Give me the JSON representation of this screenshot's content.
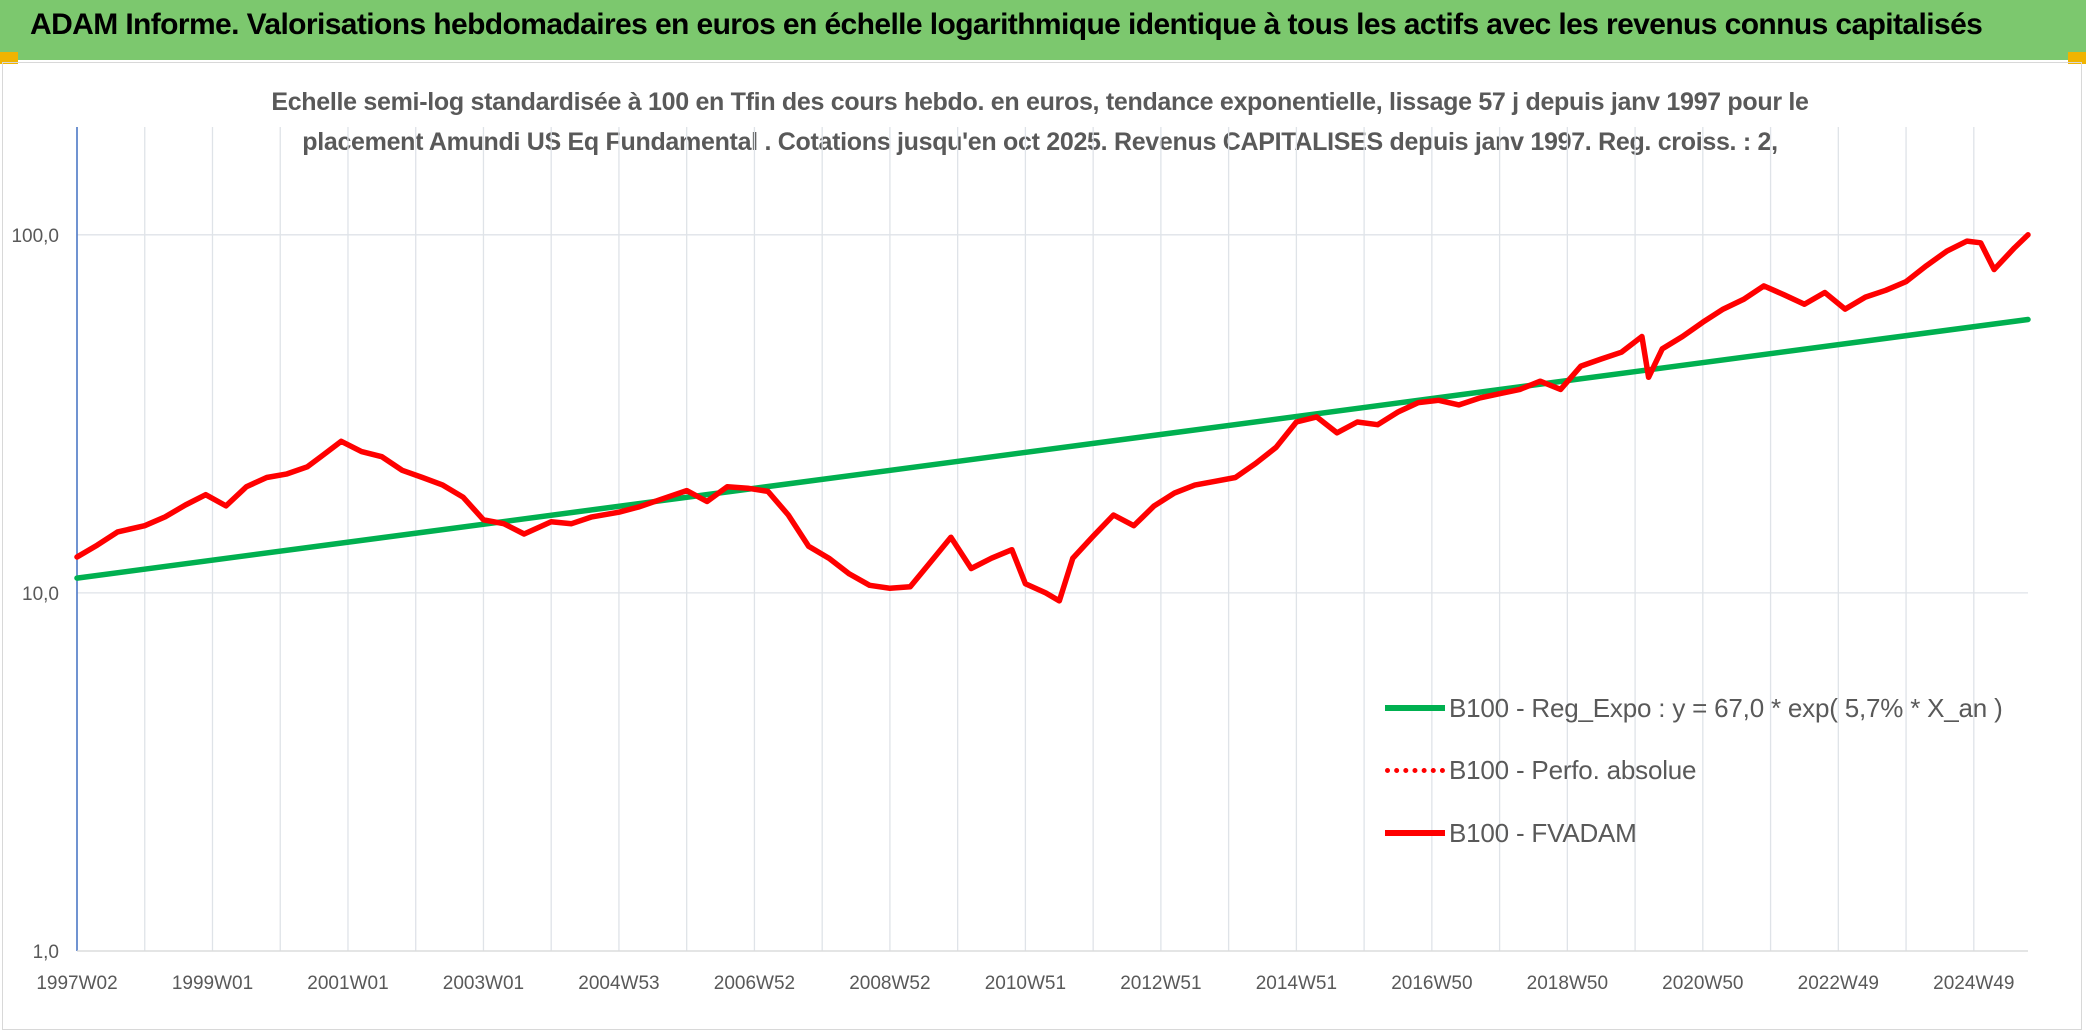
{
  "header": {
    "title": "ADAM Informe. Valorisations hebdomadaires en euros en échelle logarithmique identique à tous les actifs avec les revenus connus capitalisés"
  },
  "chart_data": {
    "type": "line",
    "title_line1": "Echelle semi-log standardisée à 100 en Tfin des cours hebdo. en euros, tendance exponentielle, lissage 57 j depuis janv 1997 pour le",
    "title_line2": "placement Amundi US Eq Fundamental . Cotations jusqu'en oct 2025. Revenus CAPITALISES depuis janv 1997. Reg. croiss. : 2,",
    "y_scale": "log",
    "ylim": [
      1,
      200
    ],
    "y_ticks": [
      {
        "value": 1,
        "label": "1,0"
      },
      {
        "value": 10,
        "label": "10,0"
      },
      {
        "value": 100,
        "label": "100,0"
      }
    ],
    "xlim": [
      1997.0,
      2025.8
    ],
    "x_ticks": [
      {
        "x": 1997.0,
        "label": "1997W02"
      },
      {
        "x": 1999.0,
        "label": "1999W01"
      },
      {
        "x": 2001.0,
        "label": "2001W01"
      },
      {
        "x": 2003.0,
        "label": "2003W01"
      },
      {
        "x": 2005.0,
        "label": "2004W53"
      },
      {
        "x": 2007.0,
        "label": "2006W52"
      },
      {
        "x": 2009.0,
        "label": "2008W52"
      },
      {
        "x": 2011.0,
        "label": "2010W51"
      },
      {
        "x": 2013.0,
        "label": "2012W51"
      },
      {
        "x": 2015.0,
        "label": "2014W51"
      },
      {
        "x": 2017.0,
        "label": "2016W50"
      },
      {
        "x": 2019.0,
        "label": "2018W50"
      },
      {
        "x": 2021.0,
        "label": "2020W50"
      },
      {
        "x": 2023.0,
        "label": "2022W49"
      },
      {
        "x": 2025.0,
        "label": "2024W49"
      }
    ],
    "grid": "vertical-and-horizontal",
    "legend_position": "right-middle",
    "series": [
      {
        "name": "B100 - Reg_Expo : y = 67,0 * exp( 5,7% * X_an )",
        "color": "#00b050",
        "style": "solid",
        "x": [
          1997.0,
          2025.8
        ],
        "y": [
          11.0,
          58.0
        ]
      },
      {
        "name": "B100 - Perfo. absolue",
        "color": "#ff0000",
        "style": "dotted",
        "x": [],
        "y": []
      },
      {
        "name": "B100 - FVADAM",
        "color": "#ff0000",
        "style": "solid",
        "x": [
          1997.0,
          1997.3,
          1997.6,
          1998.0,
          1998.3,
          1998.6,
          1998.9,
          1999.2,
          1999.5,
          1999.8,
          2000.1,
          2000.4,
          2000.6,
          2000.9,
          2001.2,
          2001.5,
          2001.8,
          2002.1,
          2002.4,
          2002.7,
          2003.0,
          2003.3,
          2003.6,
          2004.0,
          2004.3,
          2004.6,
          2005.0,
          2005.3,
          2005.6,
          2006.0,
          2006.3,
          2006.6,
          2006.9,
          2007.2,
          2007.5,
          2007.8,
          2008.1,
          2008.4,
          2008.7,
          2009.0,
          2009.3,
          2009.6,
          2009.9,
          2010.2,
          2010.5,
          2010.8,
          2011.0,
          2011.3,
          2011.5,
          2011.7,
          2012.0,
          2012.3,
          2012.6,
          2012.9,
          2013.2,
          2013.5,
          2013.8,
          2014.1,
          2014.4,
          2014.7,
          2015.0,
          2015.3,
          2015.6,
          2015.9,
          2016.2,
          2016.5,
          2016.8,
          2017.1,
          2017.4,
          2017.7,
          2018.0,
          2018.3,
          2018.6,
          2018.9,
          2019.2,
          2019.5,
          2019.8,
          2020.1,
          2020.2,
          2020.4,
          2020.7,
          2021.0,
          2021.3,
          2021.6,
          2021.9,
          2022.2,
          2022.5,
          2022.8,
          2023.1,
          2023.4,
          2023.7,
          2024.0,
          2024.3,
          2024.6,
          2024.9,
          2025.1,
          2025.3,
          2025.6,
          2025.8
        ],
        "y": [
          12.6,
          13.6,
          14.8,
          15.4,
          16.3,
          17.6,
          18.8,
          17.5,
          19.8,
          21.0,
          21.5,
          22.5,
          24.0,
          26.5,
          24.8,
          24.0,
          22.0,
          21.0,
          20.0,
          18.5,
          16.0,
          15.6,
          14.6,
          15.8,
          15.6,
          16.3,
          16.8,
          17.4,
          18.2,
          19.3,
          18.0,
          19.8,
          19.6,
          19.2,
          16.5,
          13.5,
          12.5,
          11.3,
          10.5,
          10.3,
          10.4,
          12.2,
          14.3,
          11.7,
          12.5,
          13.2,
          10.6,
          10.0,
          9.5,
          12.5,
          14.4,
          16.5,
          15.4,
          17.5,
          19.0,
          20.0,
          20.5,
          21.0,
          23.0,
          25.5,
          30.0,
          31.0,
          28.0,
          30.0,
          29.5,
          32.0,
          34.0,
          34.5,
          33.5,
          35.0,
          36.0,
          37.0,
          39.0,
          37.0,
          43.0,
          45.0,
          47.0,
          52.0,
          40.0,
          48.0,
          52.0,
          57.0,
          62.0,
          66.0,
          72.0,
          68.0,
          64.0,
          69.0,
          62.0,
          67.0,
          70.0,
          74.0,
          82.0,
          90.0,
          96.0,
          95.0,
          80.0,
          92.0,
          100.0
        ]
      }
    ]
  }
}
